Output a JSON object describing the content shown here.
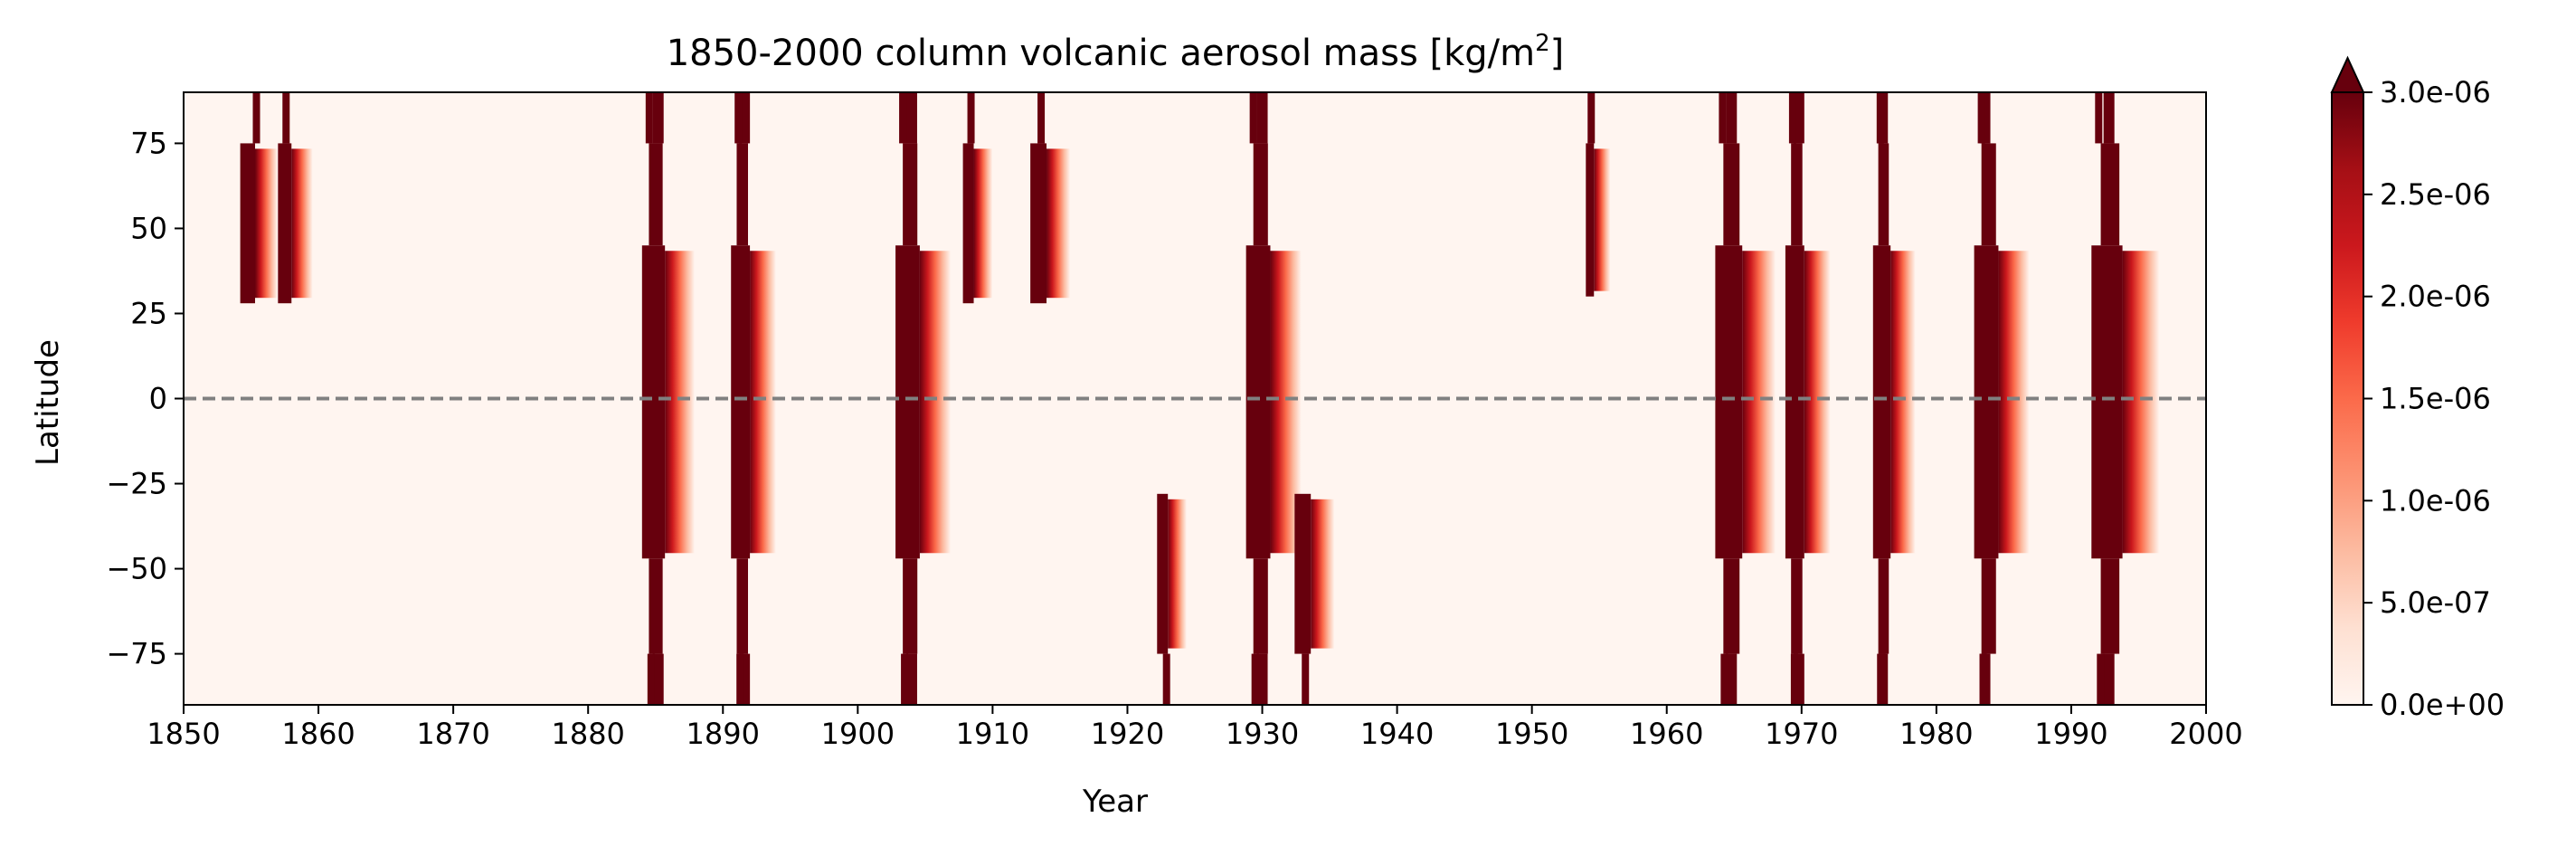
{
  "chart_data": {
    "type": "heatmap",
    "title": "1850-2000 column volcanic aerosol mass [kg/m",
    "title_sup": "2",
    "title_end": "]",
    "xlabel": "Year",
    "ylabel": "Latitude",
    "xlim": [
      1850,
      2000
    ],
    "ylim": [
      -90,
      90
    ],
    "xticks": [
      1850,
      1860,
      1870,
      1880,
      1890,
      1900,
      1910,
      1920,
      1930,
      1940,
      1950,
      1960,
      1970,
      1980,
      1990,
      2000
    ],
    "yticks": [
      -75,
      -50,
      -25,
      0,
      25,
      50,
      75
    ],
    "ytick_labels": [
      "−75",
      "−50",
      "−25",
      "0",
      "25",
      "50",
      "75"
    ],
    "reference_line": {
      "y": 0,
      "style": "dashed",
      "color": "#808080"
    },
    "colormap": "Reds",
    "colors": [
      "#fff5f0",
      "#fee0d2",
      "#fcbba1",
      "#fc9272",
      "#fb6a4a",
      "#ef3b2c",
      "#cb181d",
      "#a50f15",
      "#67000d"
    ],
    "colorbar": {
      "min": 0,
      "max": 3e-06,
      "extend": "max",
      "ticks": [
        "0.0e+00",
        "5.0e-07",
        "1.0e-06",
        "1.5e-06",
        "2.0e-06",
        "2.5e-06",
        "3.0e-06"
      ],
      "tick_values": [
        0,
        5e-07,
        1e-06,
        1.5e-06,
        2e-06,
        2.5e-06,
        3e-06
      ]
    },
    "eruptions": [
      {
        "start": 1854.2,
        "end": 1855.3,
        "lat_min": 28,
        "lat_max": 75,
        "spike_x": 1855.4,
        "spike_lat": [
          75,
          90
        ]
      },
      {
        "start": 1857.0,
        "end": 1858.0,
        "lat_min": 28,
        "lat_max": 75,
        "spike_x": 1857.6,
        "spike_lat": [
          75,
          90
        ]
      },
      {
        "start": 1884.0,
        "end": 1885.7,
        "lat_min": -47,
        "lat_max": 45,
        "north_max": 75,
        "south_min": -75,
        "spike_x": 1885.2,
        "spike_lat": [
          -90,
          90
        ]
      },
      {
        "start": 1890.6,
        "end": 1892.0,
        "lat_min": -47,
        "lat_max": 45,
        "north_max": 75,
        "south_min": -75,
        "spike_x": 1891.6,
        "spike_lat": [
          -90,
          90
        ]
      },
      {
        "start": 1902.8,
        "end": 1904.6,
        "lat_min": -47,
        "lat_max": 45,
        "north_max": 75,
        "south_min": -75,
        "spike_x": 1904.0,
        "spike_lat": [
          -90,
          90
        ]
      },
      {
        "start": 1907.8,
        "end": 1908.6,
        "lat_min": 28,
        "lat_max": 75,
        "spike_x": 1908.4,
        "spike_lat": [
          75,
          90
        ]
      },
      {
        "start": 1912.8,
        "end": 1914.0,
        "lat_min": 28,
        "lat_max": 75,
        "spike_x": 1913.6,
        "spike_lat": [
          75,
          90
        ]
      },
      {
        "start": 1922.2,
        "end": 1923.0,
        "lat_min": -75,
        "lat_max": -28,
        "spike_x": 1922.9,
        "spike_lat": [
          -90,
          -75
        ]
      },
      {
        "start": 1928.8,
        "end": 1930.6,
        "lat_min": -47,
        "lat_max": 45,
        "north_max": 75,
        "south_min": -75,
        "spike_x": 1930.0,
        "spike_lat": [
          -90,
          90
        ]
      },
      {
        "start": 1932.4,
        "end": 1933.6,
        "lat_min": -75,
        "lat_max": -28,
        "spike_x": 1933.2,
        "spike_lat": [
          -90,
          -75
        ]
      },
      {
        "start": 1954.0,
        "end": 1954.6,
        "lat_min": 30,
        "lat_max": 75,
        "spike_x": 1954.4,
        "spike_lat": [
          75,
          90
        ]
      },
      {
        "start": 1963.6,
        "end": 1965.6,
        "lat_min": -47,
        "lat_max": 45,
        "north_max": 75,
        "south_min": -75,
        "spike_x": 1964.8,
        "spike_lat": [
          -90,
          90
        ]
      },
      {
        "start": 1968.8,
        "end": 1970.2,
        "lat_min": -47,
        "lat_max": 45,
        "north_max": 75,
        "south_min": -75,
        "spike_x": 1969.8,
        "spike_lat": [
          -90,
          90
        ]
      },
      {
        "start": 1975.3,
        "end": 1976.6,
        "lat_min": -47,
        "lat_max": 45,
        "north_max": 75,
        "south_min": -75,
        "spike_x": 1976.0,
        "spike_lat": [
          -90,
          90
        ]
      },
      {
        "start": 1982.8,
        "end": 1984.6,
        "lat_min": -47,
        "lat_max": 45,
        "north_max": 75,
        "south_min": -75,
        "spike_x": 1983.6,
        "spike_lat": [
          -90,
          90
        ]
      },
      {
        "start": 1991.5,
        "end": 1993.8,
        "lat_min": -47,
        "lat_max": 45,
        "north_max": 75,
        "south_min": -75,
        "spike_x": 1992.8,
        "spike_lat": [
          -90,
          90
        ]
      }
    ]
  }
}
